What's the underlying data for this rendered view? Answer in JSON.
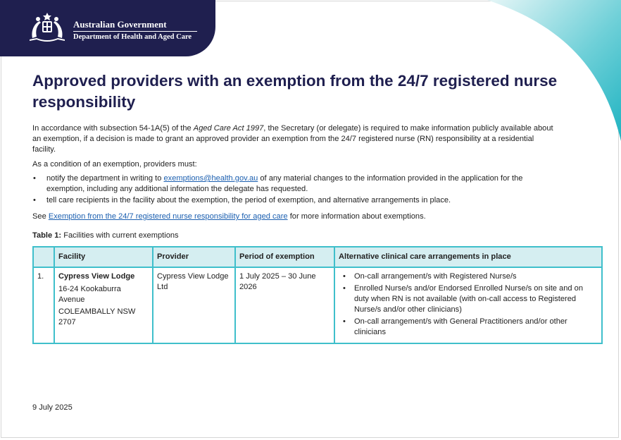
{
  "header": {
    "government": "Australian Government",
    "department": "Department of Health and Aged Care",
    "crest_icon": "coat-of-arms-icon",
    "band_color": "#1f1f4f",
    "accent_color": "#3fbfcb"
  },
  "title": "Approved providers with an exemption from the 24/7 registered nurse responsibility",
  "intro": {
    "before_italic": "In accordance with subsection 54-1A(5) of the ",
    "italic": "Aged Care Act 1997",
    "after_italic": ", the Secretary (or delegate) is required to make information publicly available about an exemption, if a decision is made to grant an approved provider an exemption from the 24/7 registered nurse (RN) responsibility at a residential facility."
  },
  "condition_lead": "As a condition of an exemption, providers must:",
  "bullets": {
    "first_before": "notify the department in writing to ",
    "first_link": "exemptions@health.gov.au",
    "first_after": " of any material changes to the information provided in the application for the exemption, including any additional information the delegate has requested.",
    "second": "tell care recipients in the facility about the exemption, the period of exemption, and alternative arrangements in place."
  },
  "see_more": {
    "before": "See ",
    "link": "Exemption from the 24/7 registered nurse responsibility for aged care",
    "after": " for more information about exemptions."
  },
  "table_caption": {
    "label": "Table 1:",
    "text": " Facilities with current exemptions"
  },
  "table": {
    "headers": [
      "Facility",
      "Provider",
      "Period of exemption",
      "Alternative clinical care arrangements in place"
    ],
    "rows": [
      {
        "number": "1.",
        "facility_name": "Cypress View Lodge",
        "address_street": "16-24 Kookaburra Avenue",
        "address_locality": "COLEAMBALLY NSW 2707",
        "provider": "Cypress View Lodge Ltd",
        "period": "1 July 2025 – 30 June 2026",
        "arrangements": [
          "On-call arrangement/s with Registered Nurse/s",
          "Enrolled Nurse/s and/or Endorsed Enrolled Nurse/s on site and on duty when RN is not available (with on-call access to Registered Nurse/s and/or other clinicians)",
          "On-call arrangement/s with General Practitioners and/or other clinicians"
        ]
      }
    ]
  },
  "date": "9 July 2025"
}
